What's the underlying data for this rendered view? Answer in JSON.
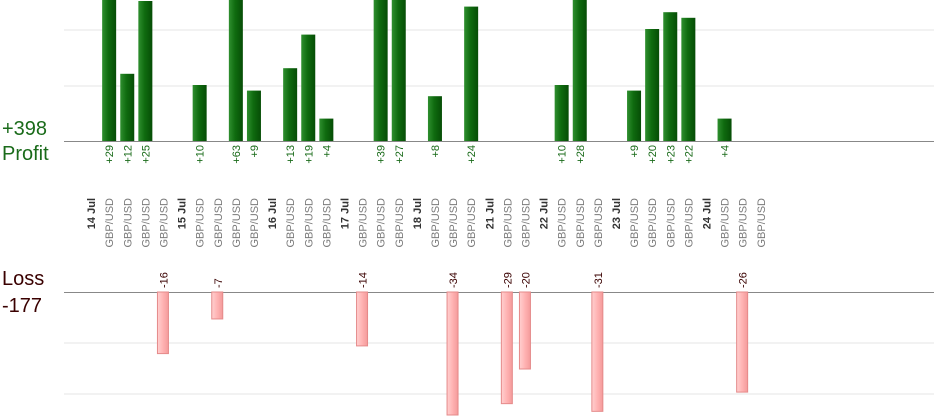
{
  "summary": {
    "profit_total": "+398",
    "profit_label": "Profit",
    "loss_label": "Loss",
    "loss_total": "-177"
  },
  "colors": {
    "profit_bar": "#0f6b0f",
    "profit_text": "#1a6b1a",
    "loss_bar": "#ffb3b3",
    "loss_bar_border": "#e58a8a",
    "loss_text": "#3a0000",
    "axis": "#888888",
    "grid": "#e6e6e6",
    "date_text": "#333333",
    "pair_text": "#7a7a7a"
  },
  "chart_data": {
    "type": "bar",
    "title": "",
    "xlabel": "",
    "ylabel": "",
    "grid": true,
    "profit_ylim": [
      0,
      25
    ],
    "loss_ylim": [
      -30,
      0
    ],
    "days": [
      {
        "date": "14 Jul",
        "trades": [
          {
            "pair": "GBP/USD",
            "value": 29
          },
          {
            "pair": "GBP/USD",
            "value": 12
          },
          {
            "pair": "GBP/USD",
            "value": 25
          },
          {
            "pair": "GBP/USD",
            "value": -16
          }
        ]
      },
      {
        "date": "15 Jul",
        "trades": [
          {
            "pair": "GBP/USD",
            "value": 10
          },
          {
            "pair": "GBP/USD",
            "value": -7
          },
          {
            "pair": "GBP/USD",
            "value": 63
          },
          {
            "pair": "GBP/USD",
            "value": 9
          }
        ]
      },
      {
        "date": "16 Jul",
        "trades": [
          {
            "pair": "GBP/USD",
            "value": 13
          },
          {
            "pair": "GBP/USD",
            "value": 19
          },
          {
            "pair": "GBP/USD",
            "value": 4
          }
        ]
      },
      {
        "date": "17 Jul",
        "trades": [
          {
            "pair": "GBP/USD",
            "value": -14
          },
          {
            "pair": "GBP/USD",
            "value": 39
          },
          {
            "pair": "GBP/USD",
            "value": 27
          }
        ]
      },
      {
        "date": "18 Jul",
        "trades": [
          {
            "pair": "GBP/USD",
            "value": 8
          },
          {
            "pair": "GBP/USD",
            "value": -34
          },
          {
            "pair": "GBP/USD",
            "value": 24
          }
        ]
      },
      {
        "date": "21 Jul",
        "trades": [
          {
            "pair": "GBP/USD",
            "value": -29
          },
          {
            "pair": "GBP/USD",
            "value": -20
          }
        ]
      },
      {
        "date": "22 Jul",
        "trades": [
          {
            "pair": "GBP/USD",
            "value": 10
          },
          {
            "pair": "GBP/USD",
            "value": 28
          },
          {
            "pair": "GBP/USD",
            "value": -31
          }
        ]
      },
      {
        "date": "23 Jul",
        "trades": [
          {
            "pair": "GBP/USD",
            "value": 9
          },
          {
            "pair": "GBP/USD",
            "value": 20
          },
          {
            "pair": "GBP/USD",
            "value": 23
          },
          {
            "pair": "GBP/USD",
            "value": 22
          }
        ]
      },
      {
        "date": "24 Jul",
        "trades": [
          {
            "pair": "GBP/USD",
            "value": 4
          },
          {
            "pair": "GBP/USD",
            "value": -26
          },
          {
            "pair": "GBP/USD",
            "value": null
          }
        ]
      }
    ]
  }
}
